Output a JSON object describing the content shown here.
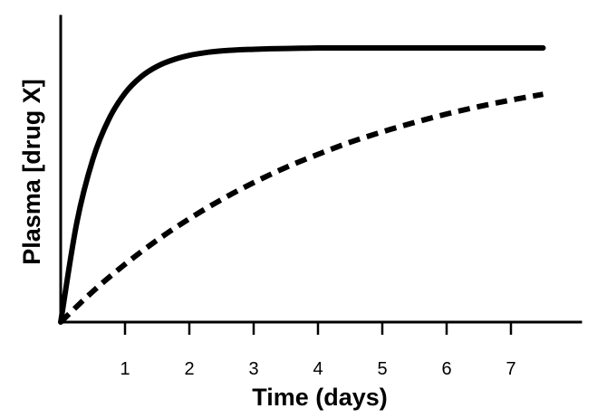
{
  "chart_data": {
    "type": "line",
    "xlabel": "Time (days)",
    "ylabel": "Plasma [drug X]",
    "xlim": [
      0,
      8.2
    ],
    "ylim": [
      0,
      1.05
    ],
    "x_ticks": [
      1,
      2,
      3,
      4,
      5,
      6,
      7
    ],
    "y_ticks": [],
    "grid": false,
    "series": [
      {
        "style": "solid",
        "x": [
          0,
          0.25,
          0.5,
          0.75,
          1,
          1.25,
          1.5,
          1.75,
          2,
          2.25,
          2.5,
          2.75,
          3,
          3.25,
          3.5,
          3.75,
          4,
          4.5,
          5,
          5.5,
          6,
          6.5,
          7,
          7.5
        ],
        "values": [
          0,
          0.363,
          0.594,
          0.741,
          0.835,
          0.895,
          0.933,
          0.957,
          0.973,
          0.983,
          0.989,
          0.993,
          0.995,
          0.997,
          0.998,
          0.999,
          1.0,
          1.0,
          1.0,
          1.0,
          1.0,
          1.0,
          1.0,
          1.0
        ]
      },
      {
        "style": "dashed",
        "x": [
          0,
          0.5,
          1,
          1.5,
          2,
          2.5,
          3,
          3.5,
          4,
          4.5,
          5,
          5.5,
          6,
          6.5,
          7,
          7.5
        ],
        "values": [
          0,
          0.112,
          0.211,
          0.299,
          0.377,
          0.447,
          0.509,
          0.564,
          0.612,
          0.656,
          0.694,
          0.728,
          0.759,
          0.786,
          0.81,
          0.831
        ]
      }
    ]
  }
}
